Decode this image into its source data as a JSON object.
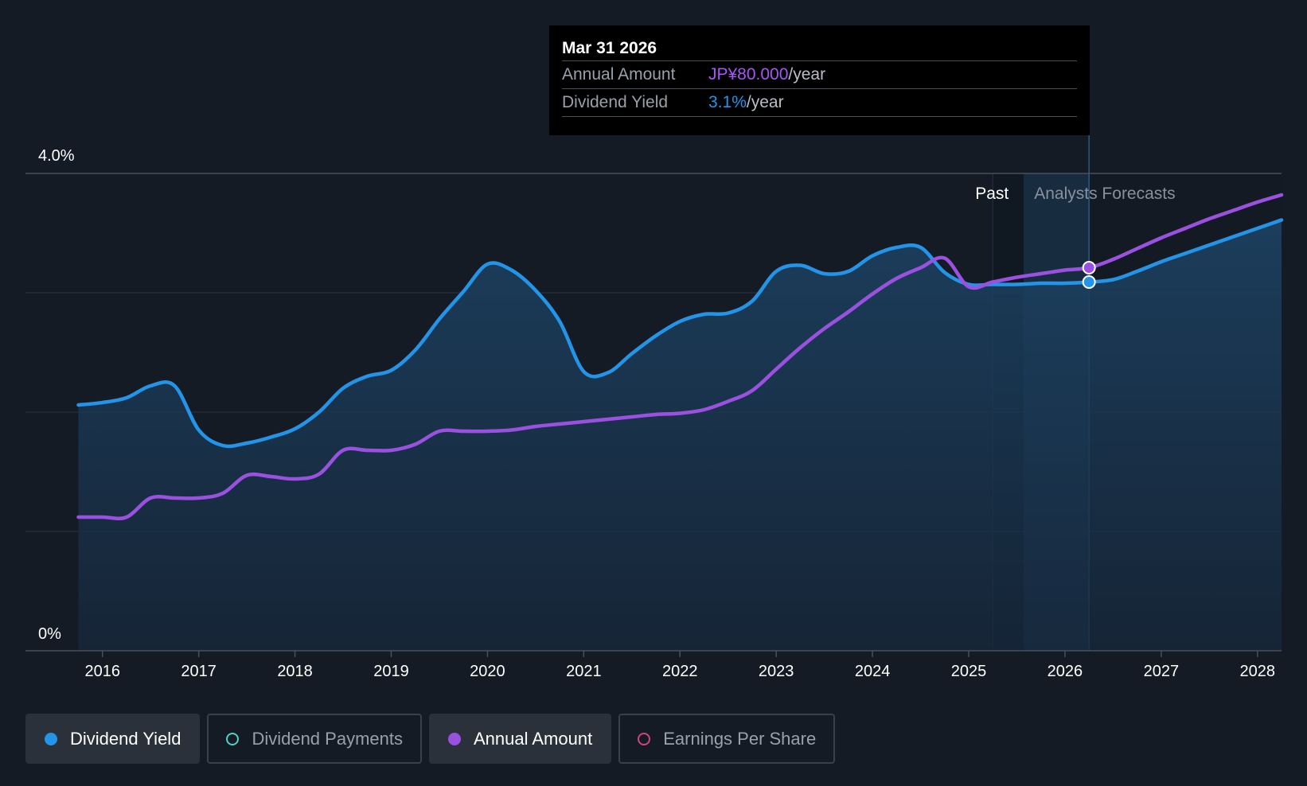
{
  "chart_data": {
    "type": "line",
    "title": "",
    "xlabel": "",
    "ylabel": "",
    "ylim": [
      0,
      4.0
    ],
    "y_tick_labels": [
      "0%",
      "4.0%"
    ],
    "x_tick_labels": [
      "2016",
      "2017",
      "2018",
      "2019",
      "2020",
      "2021",
      "2022",
      "2023",
      "2024",
      "2025",
      "2026",
      "2027",
      "2028"
    ],
    "x_ticks": [
      2016,
      2017,
      2018,
      2019,
      2020,
      2021,
      2022,
      2023,
      2024,
      2025,
      2026,
      2027,
      2028
    ],
    "xlim": [
      2015.2,
      2028.25
    ],
    "gridlines_y": [
      1.0,
      2.0,
      3.0,
      4.0
    ],
    "past_forecast_split": 2025.25,
    "highlight_start": 2025.57,
    "highlight_end": 2026.25,
    "region_labels": {
      "past": "Past",
      "forecast": "Analysts Forecasts"
    },
    "series": [
      {
        "name": "Dividend Yield",
        "color": "#2394e8",
        "area": true,
        "x": [
          2015.75,
          2016.0,
          2016.25,
          2016.5,
          2016.75,
          2017.0,
          2017.25,
          2017.5,
          2017.75,
          2018.0,
          2018.25,
          2018.5,
          2018.75,
          2019.0,
          2019.25,
          2019.5,
          2019.75,
          2020.0,
          2020.25,
          2020.5,
          2020.75,
          2021.0,
          2021.25,
          2021.5,
          2021.75,
          2022.0,
          2022.25,
          2022.5,
          2022.75,
          2023.0,
          2023.25,
          2023.5,
          2023.75,
          2024.0,
          2024.25,
          2024.5,
          2024.75,
          2025.0,
          2025.25,
          2025.5,
          2025.75,
          2026.0,
          2026.25,
          2026.5,
          2026.75,
          2027.0,
          2027.25,
          2027.5,
          2027.75,
          2028.0,
          2028.25
        ],
        "values": [
          2.06,
          2.08,
          2.12,
          2.22,
          2.22,
          1.85,
          1.72,
          1.74,
          1.79,
          1.86,
          2.0,
          2.2,
          2.3,
          2.35,
          2.52,
          2.78,
          3.01,
          3.24,
          3.19,
          3.02,
          2.76,
          2.34,
          2.33,
          2.49,
          2.64,
          2.76,
          2.82,
          2.83,
          2.93,
          3.18,
          3.23,
          3.16,
          3.18,
          3.31,
          3.38,
          3.38,
          3.17,
          3.07,
          3.07,
          3.07,
          3.08,
          3.08,
          3.09,
          3.11,
          3.18,
          3.26,
          3.33,
          3.4,
          3.47,
          3.54,
          3.61
        ]
      },
      {
        "name": "Annual Amount",
        "color": "#9b51e0",
        "area": false,
        "x": [
          2015.75,
          2016.0,
          2016.25,
          2016.5,
          2016.75,
          2017.0,
          2017.25,
          2017.5,
          2017.75,
          2018.0,
          2018.25,
          2018.5,
          2018.75,
          2019.0,
          2019.25,
          2019.5,
          2019.75,
          2020.0,
          2020.25,
          2020.5,
          2020.75,
          2021.0,
          2021.25,
          2021.5,
          2021.75,
          2022.0,
          2022.25,
          2022.5,
          2022.75,
          2023.0,
          2023.25,
          2023.5,
          2023.75,
          2024.0,
          2024.25,
          2024.5,
          2024.75,
          2025.0,
          2025.25,
          2025.5,
          2025.75,
          2026.0,
          2026.25,
          2026.5,
          2026.75,
          2027.0,
          2027.25,
          2027.5,
          2027.75,
          2028.0,
          2028.25
        ],
        "values": [
          1.12,
          1.12,
          1.12,
          1.28,
          1.28,
          1.28,
          1.32,
          1.47,
          1.46,
          1.44,
          1.48,
          1.68,
          1.68,
          1.68,
          1.73,
          1.84,
          1.84,
          1.84,
          1.85,
          1.88,
          1.9,
          1.92,
          1.94,
          1.96,
          1.98,
          1.99,
          2.02,
          2.09,
          2.18,
          2.36,
          2.54,
          2.7,
          2.84,
          2.99,
          3.12,
          3.21,
          3.29,
          3.05,
          3.09,
          3.13,
          3.16,
          3.19,
          3.21,
          3.28,
          3.37,
          3.46,
          3.54,
          3.62,
          3.69,
          3.76,
          3.82
        ]
      }
    ],
    "highlight_points": [
      {
        "series": "Annual Amount",
        "x": 2026.25,
        "y": 3.21
      },
      {
        "series": "Dividend Yield",
        "x": 2026.25,
        "y": 3.09
      }
    ]
  },
  "tooltip": {
    "date": "Mar 31 2026",
    "rows": [
      {
        "label": "Annual Amount",
        "value": "JP¥80.000",
        "suffix": "/year",
        "color": "#a855f7"
      },
      {
        "label": "Dividend Yield",
        "value": "3.1%",
        "suffix": "/year",
        "color": "#2394e8"
      }
    ]
  },
  "legend": [
    {
      "label": "Dividend Yield",
      "color": "#2394e8",
      "active": true,
      "filled": true
    },
    {
      "label": "Dividend Payments",
      "color": "#4fd1c5",
      "active": false,
      "filled": false
    },
    {
      "label": "Annual Amount",
      "color": "#9b51e0",
      "active": true,
      "filled": true
    },
    {
      "label": "Earnings Per Share",
      "color": "#d0457f",
      "active": false,
      "filled": false
    }
  ]
}
